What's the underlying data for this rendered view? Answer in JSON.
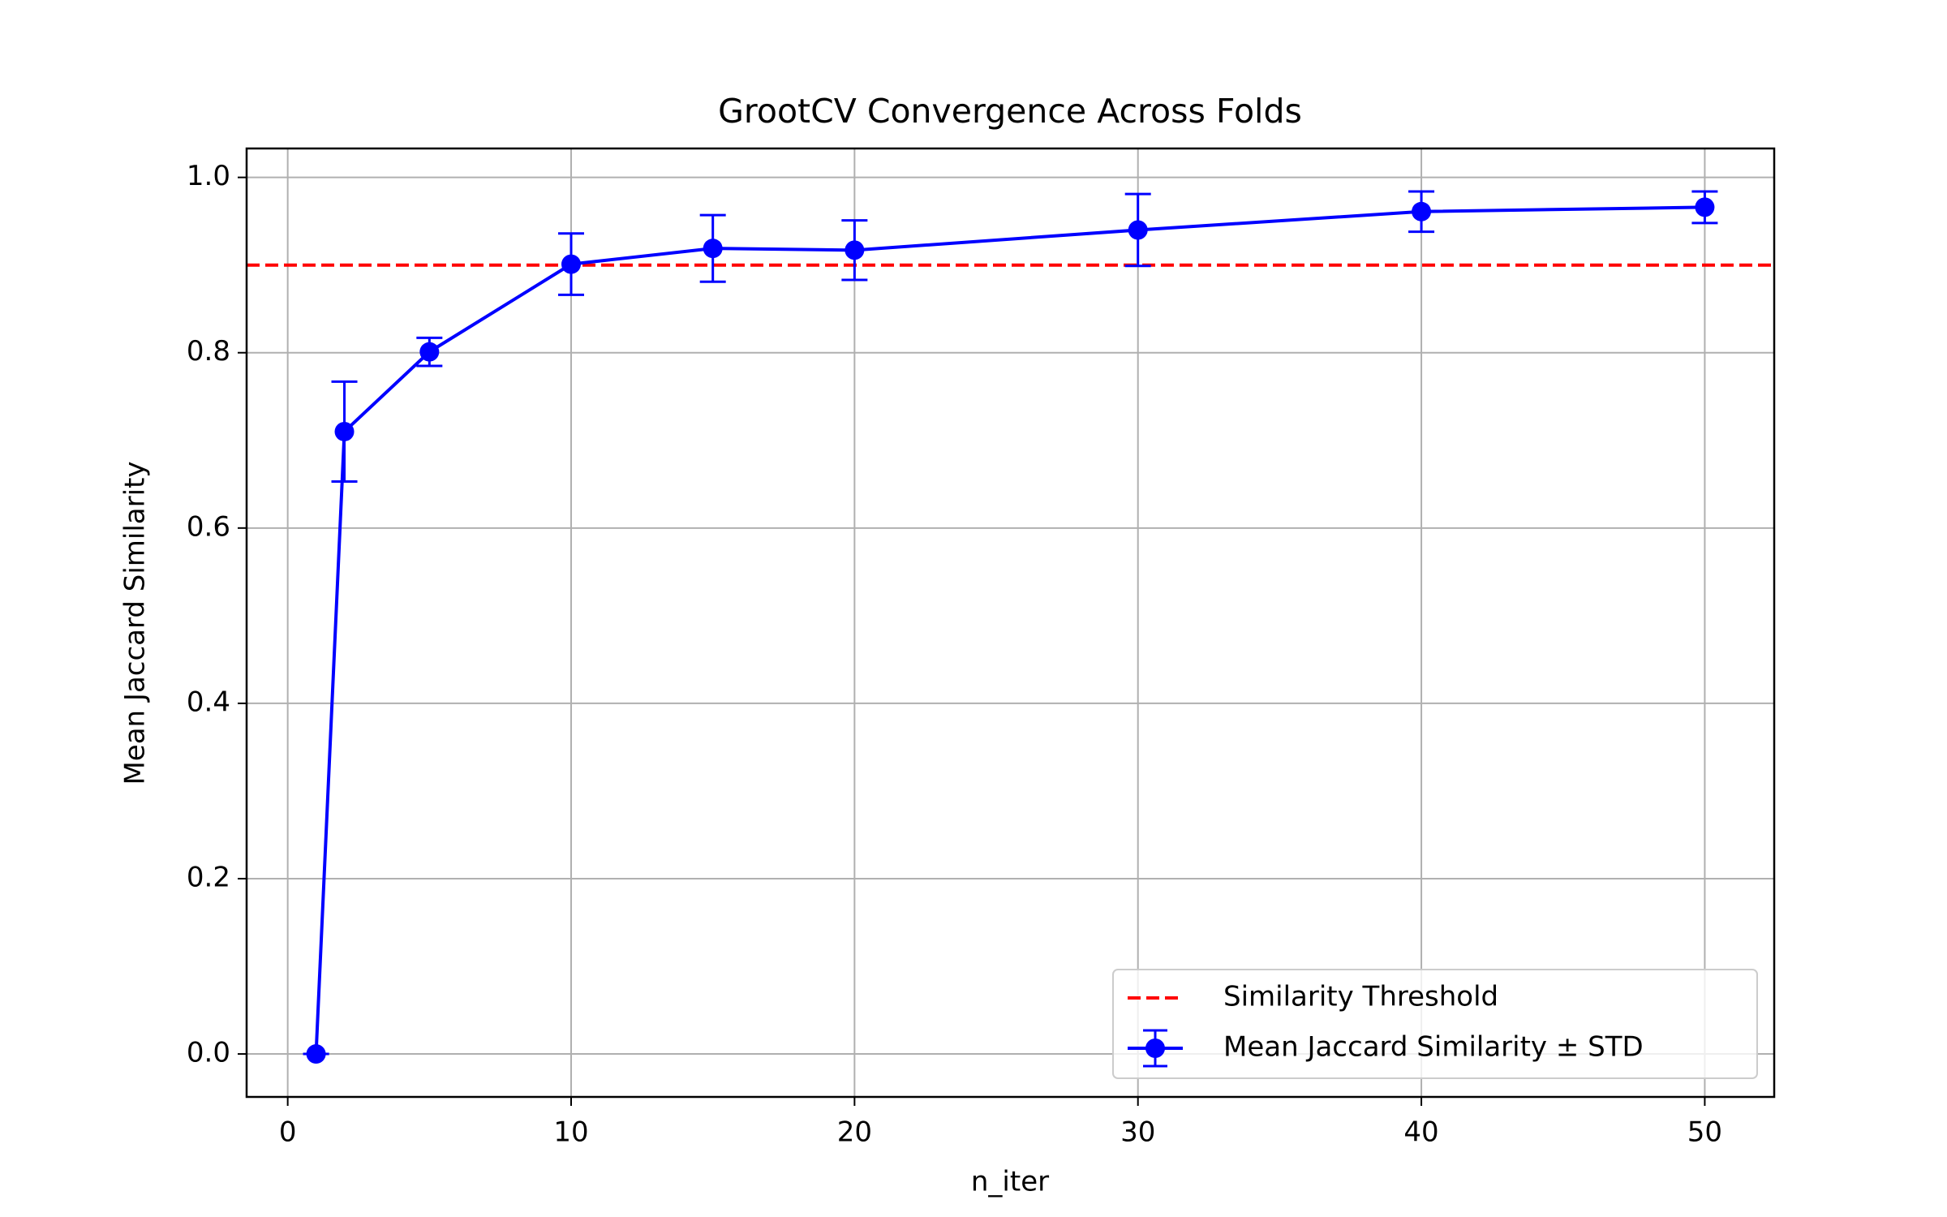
{
  "chart_data": {
    "type": "errorbar_line",
    "title": "GrootCV Convergence Across Folds",
    "x_label": "n_iter",
    "y_label": "Mean Jaccard Similarity",
    "x": [
      1,
      2,
      5,
      10,
      15,
      20,
      30,
      40,
      50
    ],
    "series": [
      {
        "name": "Mean Jaccard Similarity ± STD",
        "color": "#0000ff",
        "values": [
          0,
          0.71,
          0.801,
          0.901,
          0.919,
          0.917,
          0.94,
          0.961,
          0.966
        ],
        "errors": [
          0,
          0.057,
          0.016,
          0.035,
          0.038,
          0.034,
          0.041,
          0.023,
          0.018
        ]
      }
    ],
    "threshold": {
      "name": "Similarity Threshold",
      "value": 0.9,
      "color": "#ff0000"
    },
    "xlim": [
      -1.45,
      52.45
    ],
    "ylim": [
      -0.049,
      1.033
    ],
    "xticks": [
      0,
      10,
      20,
      30,
      40,
      50
    ],
    "yticks": [
      {
        "value": 0,
        "label": "0.0"
      },
      0.2,
      0.4,
      0.6,
      0.8,
      {
        "value": 1,
        "label": "1.0"
      }
    ],
    "grid": true,
    "legend": "lower right"
  }
}
